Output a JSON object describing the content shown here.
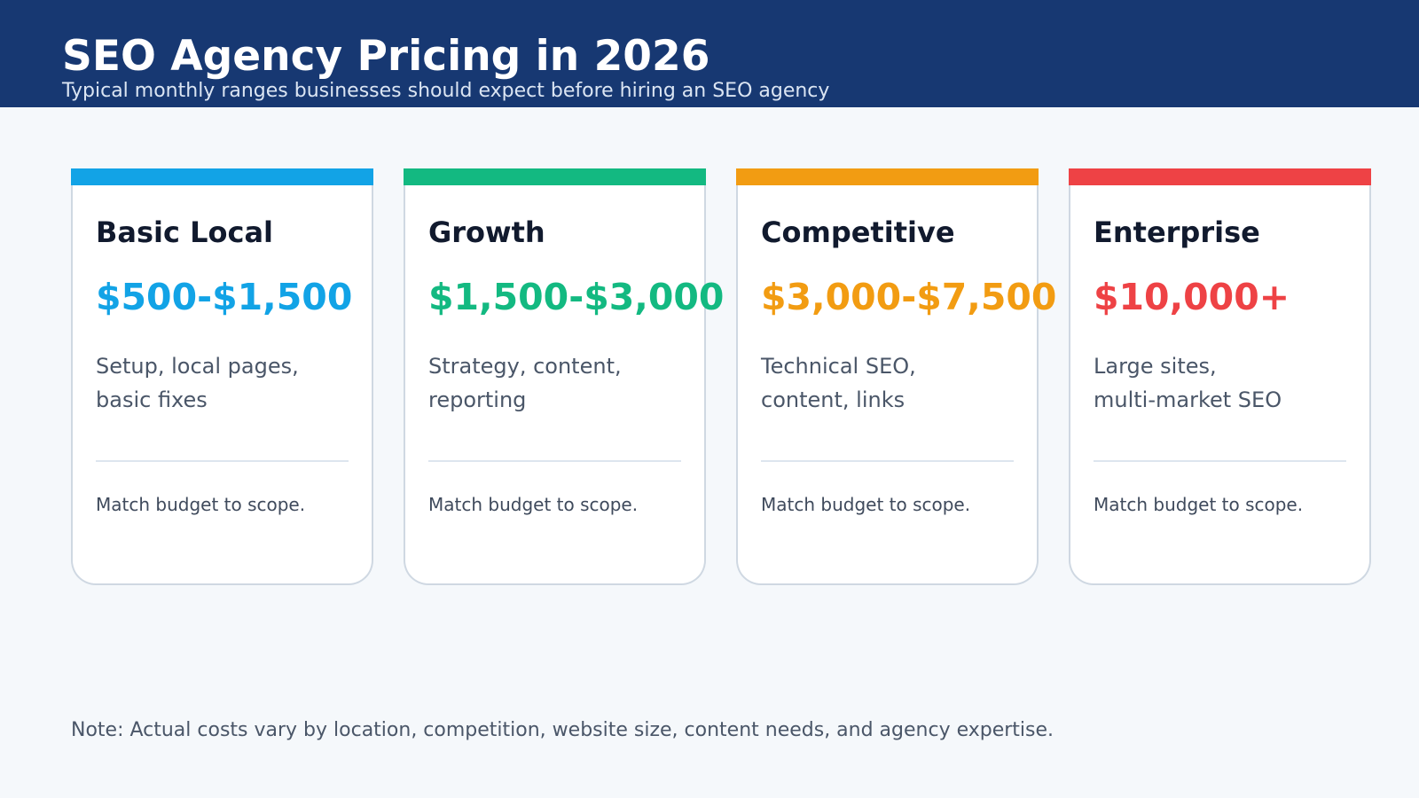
{
  "header": {
    "title": "SEO Agency Pricing in 2026",
    "subtitle": "Typical monthly ranges businesses should expect before hiring an SEO agency"
  },
  "tiers": [
    {
      "name": "Basic Local",
      "price": "$500-$1,500",
      "desc_line1": "Setup, local pages,",
      "desc_line2": "basic fixes",
      "footer": "Match budget to scope.",
      "color": "#12a3e6"
    },
    {
      "name": "Growth",
      "price": "$1,500-$3,000",
      "desc_line1": "Strategy, content,",
      "desc_line2": "reporting",
      "footer": "Match budget to scope.",
      "color": "#13b981"
    },
    {
      "name": "Competitive",
      "price": "$3,000-$7,500",
      "desc_line1": "Technical SEO,",
      "desc_line2": "content, links",
      "footer": "Match budget to scope.",
      "color": "#f29c12"
    },
    {
      "name": "Enterprise",
      "price": "$10,000+",
      "desc_line1": "Large sites,",
      "desc_line2": "multi-market SEO",
      "footer": "Match budget to scope.",
      "color": "#ee4245"
    }
  ],
  "note": "Note: Actual costs vary by location, competition, website size, content needs, and agency expertise."
}
